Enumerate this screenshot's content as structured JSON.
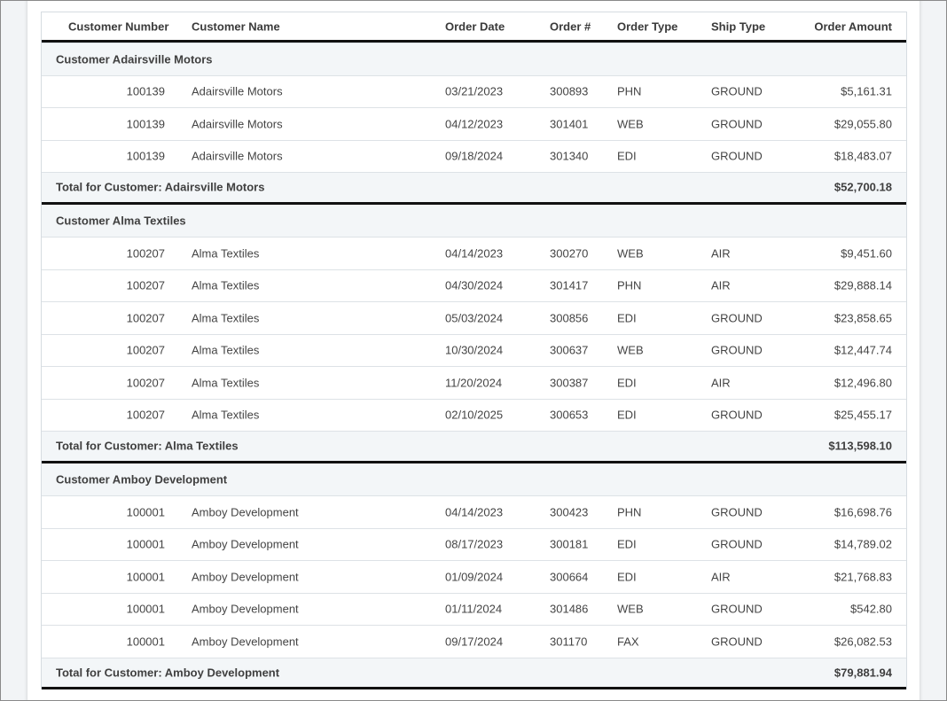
{
  "columns": {
    "customer_number": "Customer Number",
    "customer_name": "Customer Name",
    "order_date": "Order Date",
    "order_no": "Order #",
    "order_type": "Order Type",
    "ship_type": "Ship Type",
    "order_amount": "Order Amount"
  },
  "groups": [
    {
      "header": "Customer Adairsville Motors",
      "total_label": "Total for Customer: Adairsville Motors",
      "total_amount": "$52,700.18",
      "rows": [
        {
          "num": "100139",
          "name": "Adairsville Motors",
          "date": "03/21/2023",
          "order": "300893",
          "type": "PHN",
          "ship": "GROUND",
          "amount": "$5,161.31"
        },
        {
          "num": "100139",
          "name": "Adairsville Motors",
          "date": "04/12/2023",
          "order": "301401",
          "type": "WEB",
          "ship": "GROUND",
          "amount": "$29,055.80"
        },
        {
          "num": "100139",
          "name": "Adairsville Motors",
          "date": "09/18/2024",
          "order": "301340",
          "type": "EDI",
          "ship": "GROUND",
          "amount": "$18,483.07"
        }
      ]
    },
    {
      "header": "Customer Alma Textiles",
      "total_label": "Total for Customer: Alma Textiles",
      "total_amount": "$113,598.10",
      "rows": [
        {
          "num": "100207",
          "name": "Alma Textiles",
          "date": "04/14/2023",
          "order": "300270",
          "type": "WEB",
          "ship": "AIR",
          "amount": "$9,451.60"
        },
        {
          "num": "100207",
          "name": "Alma Textiles",
          "date": "04/30/2024",
          "order": "301417",
          "type": "PHN",
          "ship": "AIR",
          "amount": "$29,888.14"
        },
        {
          "num": "100207",
          "name": "Alma Textiles",
          "date": "05/03/2024",
          "order": "300856",
          "type": "EDI",
          "ship": "GROUND",
          "amount": "$23,858.65"
        },
        {
          "num": "100207",
          "name": "Alma Textiles",
          "date": "10/30/2024",
          "order": "300637",
          "type": "WEB",
          "ship": "GROUND",
          "amount": "$12,447.74"
        },
        {
          "num": "100207",
          "name": "Alma Textiles",
          "date": "11/20/2024",
          "order": "300387",
          "type": "EDI",
          "ship": "AIR",
          "amount": "$12,496.80"
        },
        {
          "num": "100207",
          "name": "Alma Textiles",
          "date": "02/10/2025",
          "order": "300653",
          "type": "EDI",
          "ship": "GROUND",
          "amount": "$25,455.17"
        }
      ]
    },
    {
      "header": "Customer Amboy Development",
      "total_label": "Total for Customer: Amboy Development",
      "total_amount": "$79,881.94",
      "rows": [
        {
          "num": "100001",
          "name": "Amboy Development",
          "date": "04/14/2023",
          "order": "300423",
          "type": "PHN",
          "ship": "GROUND",
          "amount": "$16,698.76"
        },
        {
          "num": "100001",
          "name": "Amboy Development",
          "date": "08/17/2023",
          "order": "300181",
          "type": "EDI",
          "ship": "GROUND",
          "amount": "$14,789.02"
        },
        {
          "num": "100001",
          "name": "Amboy Development",
          "date": "01/09/2024",
          "order": "300664",
          "type": "EDI",
          "ship": "AIR",
          "amount": "$21,768.83"
        },
        {
          "num": "100001",
          "name": "Amboy Development",
          "date": "01/11/2024",
          "order": "301486",
          "type": "WEB",
          "ship": "GROUND",
          "amount": "$542.80"
        },
        {
          "num": "100001",
          "name": "Amboy Development",
          "date": "09/17/2024",
          "order": "301170",
          "type": "FAX",
          "ship": "GROUND",
          "amount": "$26,082.53"
        }
      ]
    }
  ]
}
